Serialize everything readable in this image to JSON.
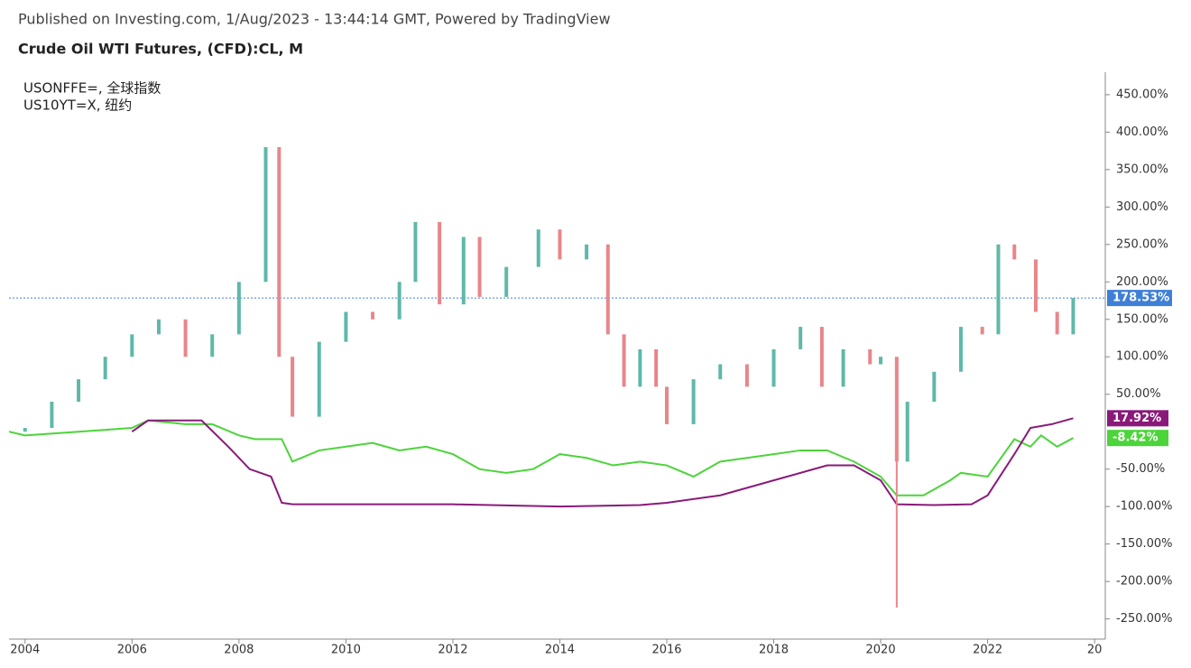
{
  "chart_data": {
    "type": "candlestick",
    "header": "Published on Investing.com, 1/Aug/2023 - 13:44:14 GMT, Powered by TradingView",
    "title": "Crude Oil WTI Futures, (CFD):CL, M",
    "x": [
      2003.75,
      2004.0,
      2004.5,
      2005.0,
      2005.5,
      2006.0,
      2006.5,
      2007.0,
      2007.5,
      2008.0,
      2008.5,
      2008.75,
      2009.0,
      2009.5,
      2010.0,
      2010.5,
      2011.0,
      2011.3,
      2011.75,
      2012.2,
      2012.5,
      2013.0,
      2013.6,
      2014.0,
      2014.5,
      2014.9,
      2015.2,
      2015.5,
      2015.8,
      2016.0,
      2016.5,
      2017.0,
      2017.5,
      2018.0,
      2018.5,
      2018.9,
      2019.3,
      2019.8,
      2020.0,
      2020.3,
      2020.5,
      2021.0,
      2021.5,
      2021.9,
      2022.2,
      2022.5,
      2022.9,
      2023.3,
      2023.6
    ],
    "values": [
      0,
      5,
      40,
      70,
      100,
      130,
      150,
      100,
      130,
      200,
      380,
      100,
      20,
      120,
      160,
      150,
      200,
      280,
      170,
      260,
      180,
      220,
      270,
      230,
      250,
      130,
      60,
      110,
      60,
      10,
      70,
      90,
      60,
      110,
      140,
      60,
      110,
      90,
      100,
      -40,
      40,
      80,
      140,
      130,
      250,
      230,
      160,
      130,
      178.53
    ],
    "lows": [
      null,
      null,
      null,
      null,
      null,
      null,
      null,
      null,
      null,
      null,
      null,
      null,
      null,
      null,
      null,
      null,
      null,
      null,
      null,
      null,
      null,
      null,
      null,
      null,
      null,
      null,
      null,
      null,
      null,
      null,
      null,
      null,
      null,
      null,
      null,
      null,
      null,
      null,
      null,
      -235,
      null,
      null,
      null,
      null,
      null,
      null,
      null,
      null,
      null
    ],
    "up_color": "#5fb8a8",
    "down_color": "#e8868a",
    "price_line": {
      "value": 178.53,
      "label": "178.53%",
      "color": "#3f7fd6"
    },
    "series": [
      {
        "name": "USONFFE=, 全球指数",
        "color": "#4cd43a",
        "x": [
          2003.7,
          2004.0,
          2005.0,
          2006.0,
          2006.3,
          2007.0,
          2007.5,
          2008.0,
          2008.3,
          2008.8,
          2009.0,
          2009.5,
          2010.0,
          2010.5,
          2011.0,
          2011.5,
          2012.0,
          2012.5,
          2013.0,
          2013.5,
          2014.0,
          2014.5,
          2015.0,
          2015.5,
          2016.0,
          2016.5,
          2017.0,
          2017.5,
          2018.0,
          2018.5,
          2019.0,
          2019.5,
          2020.0,
          2020.3,
          2020.8,
          2021.3,
          2021.5,
          2022.0,
          2022.5,
          2022.8,
          2023.0,
          2023.3,
          2023.6
        ],
        "values": [
          0,
          -5,
          0,
          5,
          15,
          10,
          10,
          -5,
          -10,
          -10,
          -40,
          -25,
          -20,
          -15,
          -25,
          -20,
          -30,
          -50,
          -55,
          -50,
          -30,
          -35,
          -45,
          -40,
          -45,
          -60,
          -40,
          -35,
          -30,
          -25,
          -25,
          -40,
          -60,
          -85,
          -85,
          -65,
          -55,
          -60,
          -10,
          -20,
          -5,
          -20,
          -8.42
        ],
        "last_label": "-8.42%"
      },
      {
        "name": "US10YT=X, 纽约",
        "color": "#8a1a7a",
        "x": [
          2006.0,
          2006.3,
          2007.3,
          2007.8,
          2008.2,
          2008.6,
          2008.8,
          2009.0,
          2012.0,
          2014.0,
          2015.5,
          2016.0,
          2017.0,
          2018.0,
          2019.0,
          2019.5,
          2020.0,
          2020.3,
          2021.0,
          2021.7,
          2022.0,
          2022.5,
          2022.8,
          2023.2,
          2023.6
        ],
        "values": [
          0,
          15,
          15,
          -20,
          -50,
          -60,
          -95,
          -97,
          -97,
          -100,
          -98,
          -95,
          -85,
          -65,
          -45,
          -45,
          -65,
          -97,
          -98,
          -97,
          -85,
          -30,
          5,
          10,
          17.92
        ],
        "last_label": "17.92%"
      }
    ],
    "xlim": [
      2003.7,
      2024.2
    ],
    "xticks": [
      2004,
      2006,
      2008,
      2010,
      2012,
      2014,
      2016,
      2018,
      2020,
      2022,
      {
        "value": 2024,
        "label": "20"
      }
    ],
    "ylim": [
      -277,
      480
    ],
    "yticks": [
      {
        "value": -250,
        "label": "-250.00%"
      },
      {
        "value": -200,
        "label": "-200.00%"
      },
      {
        "value": -150,
        "label": "-150.00%"
      },
      {
        "value": -100,
        "label": "-100.00%"
      },
      {
        "value": -50,
        "label": "-50.00%"
      },
      {
        "value": 50,
        "label": "50.00%"
      },
      {
        "value": 100,
        "label": "100.00%"
      },
      {
        "value": 150,
        "label": "150.00%"
      },
      {
        "value": 200,
        "label": "200.00%"
      },
      {
        "value": 250,
        "label": "250.00%"
      },
      {
        "value": 300,
        "label": "300.00%"
      },
      {
        "value": 350,
        "label": "350.00%"
      },
      {
        "value": 400,
        "label": "400.00%"
      },
      {
        "value": 450,
        "label": "450.00%"
      }
    ]
  }
}
